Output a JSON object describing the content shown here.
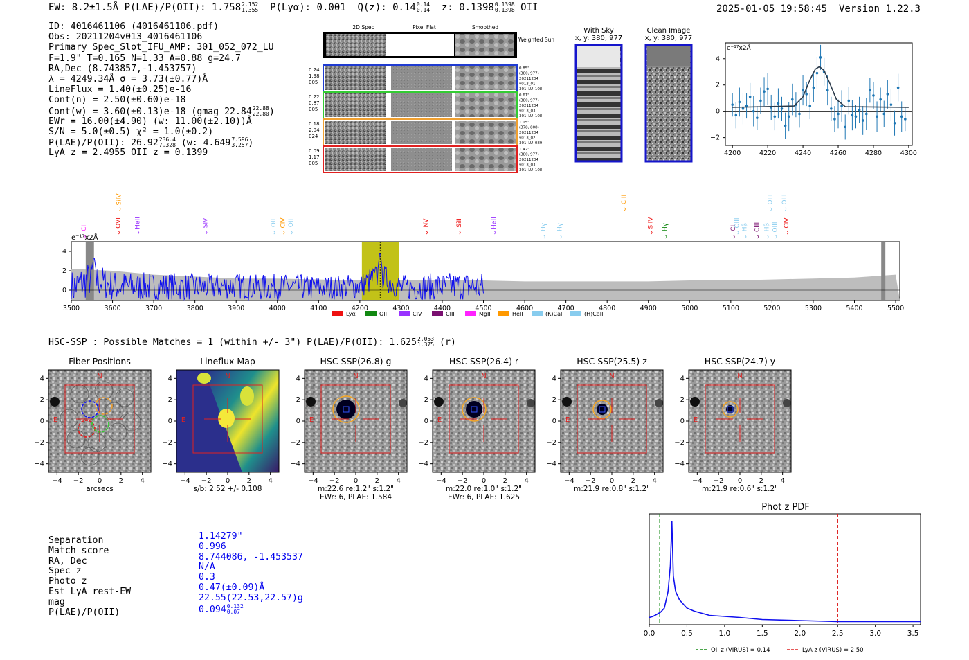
{
  "header": {
    "summary_left": "EW: 8.2±1.5Å  P(LAE)/P(OII): 1.758",
    "summary_frac_hi": "2.152",
    "summary_frac_lo": "1.355",
    "plya": "P(Lyα): 0.001",
    "qz": "Q(z): 0.14",
    "qz_hi": "0.14",
    "qz_lo": "0.14",
    "z": "z: 0.1398",
    "z_hi": "0.1398",
    "z_lo": "0.1398",
    "z_line": "OII",
    "timestamp": "2025-01-05 19:58:45",
    "version": "Version 1.22.3"
  },
  "info": {
    "id": "ID: 4016461106 (4016461106.pdf)",
    "obs": "Obs: 20211204v013_4016461106",
    "primary": "Primary Spec_Slot_IFU_AMP: 301_052_072_LU",
    "fiber": "F=1.9\"  T=0.165  N=1.33  A=0.88  g=24.7",
    "radec": "RA,Dec (8.743857,-1.453757)",
    "lambda": "λ = 4249.34Å  σ = 3.73(±0.77)Å",
    "lineflux": "LineFlux = 1.40(±0.25)e-16",
    "cont_n": "Cont(n) = 2.50(±0.60)e-18",
    "cont_w": "Cont(w) = 3.60(±0.13)e-18 (gmag 22.84",
    "cont_w_hi": "22.88",
    "cont_w_lo": "22.80",
    "ewr": "EWr = 16.00(±4.90) (w: 11.00(±2.10))Å",
    "sn": "S/N = 5.0(±0.5)  χ² = 1.0(±0.2)",
    "plae": "P(LAE)/P(OII): 26.92",
    "plae_hi": "236.4",
    "plae_lo": "7.328",
    "plae_w": "(w: 4.649",
    "plae_w_hi": "7.596",
    "plae_w_lo": "3.257",
    "redshifts": "LyA z = 2.4955  OII z = 0.1399"
  },
  "spec2d": {
    "headers": [
      "2D Spec",
      "Pixel Flat",
      "Smoothed"
    ],
    "weighted_label": "Weighted Sum",
    "rows": [
      {
        "left": [
          "0.24",
          "1.98",
          "005"
        ],
        "right": [
          "0.85\"",
          "(380, 977)",
          "20211204",
          "v013_01",
          "301_LU_108"
        ],
        "color": "#1f3bd1"
      },
      {
        "left": [
          "0.22",
          "0.87",
          "005"
        ],
        "right": [
          "0.61\"",
          "(380, 977)",
          "20211204",
          "v013_03",
          "301_LU_108"
        ],
        "color": "#33cc33"
      },
      {
        "left": [
          "0.18",
          "2.04",
          "024"
        ],
        "right": [
          "1.15\"",
          "(378, 808)",
          "20211204",
          "v013_02",
          "301_LU_089"
        ],
        "color": "#f0a030"
      },
      {
        "left": [
          "0.09",
          "1.17",
          "005"
        ],
        "right": [
          "1.42\"",
          "(380, 977)",
          "20211204",
          "v013_03",
          "301_LU_108"
        ],
        "color": "#e02020"
      }
    ]
  },
  "cutouts": {
    "with_sky": {
      "title": "With Sky",
      "coords": "x, y: 380, 977"
    },
    "clean": {
      "title": "Clean Image",
      "coords": "x, y: 380, 977"
    }
  },
  "line_fit": {
    "ylabel": "e⁻¹⁷x2Å",
    "xticks": [
      "4200",
      "4220",
      "4240",
      "4260",
      "4280",
      "4300"
    ],
    "yticks": [
      "4",
      "2",
      "0",
      "−2"
    ]
  },
  "full_spectrum": {
    "ylabel": "e⁻¹⁷x2Å",
    "xticks": [
      "3500",
      "3600",
      "3700",
      "3800",
      "3900",
      "4000",
      "4100",
      "4200",
      "4300",
      "4400",
      "4500",
      "4600",
      "4700",
      "4800",
      "4900",
      "5000",
      "5100",
      "5200",
      "5300",
      "5400",
      "5500"
    ],
    "yticks": [
      "4",
      "2",
      "0"
    ],
    "legend": [
      {
        "label": "Lyα",
        "color": "#ee1111"
      },
      {
        "label": "OII",
        "color": "#118811"
      },
      {
        "label": "CIV",
        "color": "#9933ff"
      },
      {
        "label": "CIII",
        "color": "#7a1070"
      },
      {
        "label": "MgII",
        "color": "#ff22ff"
      },
      {
        "label": "HeII",
        "color": "#ff9900"
      },
      {
        "label": "(K)CaII",
        "color": "#88ccee"
      },
      {
        "label": "(H)CaII",
        "color": "#88ccee"
      }
    ]
  },
  "hsc": {
    "title": "HSC-SSP : Possible Matches = 1 (within +/- 3\")  P(LAE)/P(OII): 1.625",
    "title_hi": "2.053",
    "title_lo": "1.375",
    "title_band": "(r)",
    "panels": [
      {
        "title": "Fiber Positions",
        "caption1": "arcsecs",
        "caption2": ""
      },
      {
        "title": "Lineflux Map",
        "caption1": "s/b: 2.52 +/- 0.108",
        "caption2": ""
      },
      {
        "title": "HSC SSP(26.8) g",
        "caption1": "m:22.6  re:1.2\"  s:1.2\"",
        "caption2": "EWr: 6, PLAE: 1.584"
      },
      {
        "title": "HSC SSP(26.4) r",
        "caption1": "m:22.0  re:1.0\"  s:1.2\"",
        "caption2": "EWr: 6, PLAE: 1.625"
      },
      {
        "title": "HSC SSP(25.5) z",
        "caption1": "m:21.9  re:0.8\"  s:1.2\"",
        "caption2": ""
      },
      {
        "title": "HSC SSP(24.7) y",
        "caption1": "m:21.9  re:0.6\"  s:1.2\"",
        "caption2": ""
      }
    ],
    "ticks": [
      "4",
      "2",
      "0",
      "−2",
      "−4"
    ],
    "compass_n": "N",
    "compass_e": "E"
  },
  "match": {
    "labels": [
      "Separation",
      "Match score",
      "RA, Dec",
      "Spec z",
      "Photo z",
      "Est LyA rest-EW",
      "mag",
      "P(LAE)/P(OII)"
    ],
    "values": [
      "1.14279\"",
      "0.996",
      "8.744086, -1.453537",
      "N/A",
      "0.3",
      "0.47(±0.09)Å",
      "22.55(22.53,22.57)g",
      "0.094"
    ],
    "plae_hi": "0.132",
    "plae_lo": "0.07"
  },
  "chart_data": [
    {
      "type": "scatter",
      "title": "",
      "xlabel": "",
      "ylabel": "e-17 x2Å",
      "xlim": [
        4196,
        4302
      ],
      "ylim": [
        -2.6,
        5.2
      ],
      "series": [
        {
          "name": "data",
          "x": [
            4200,
            4202,
            4204,
            4206,
            4208,
            4210,
            4212,
            4214,
            4216,
            4218,
            4220,
            4222,
            4224,
            4226,
            4228,
            4230,
            4232,
            4234,
            4236,
            4238,
            4240,
            4242,
            4244,
            4246,
            4248,
            4250,
            4252,
            4254,
            4256,
            4258,
            4260,
            4262,
            4264,
            4266,
            4268,
            4270,
            4272,
            4274,
            4276,
            4278,
            4280,
            4282,
            4284,
            4286,
            4288,
            4290,
            4292,
            4294,
            4296,
            4298
          ],
          "y": [
            0.5,
            -0.3,
            0.7,
            0.2,
            0.4,
            1.1,
            0.0,
            -0.5,
            0.8,
            1.5,
            1.7,
            0.3,
            -0.4,
            0.6,
            0.2,
            -1.1,
            -0.4,
            0.9,
            0.5,
            -0.2,
            1.6,
            1.3,
            0.4,
            1.8,
            2.9,
            4.1,
            3.0,
            1.6,
            0.2,
            -0.6,
            -0.2,
            0.4,
            -1.2,
            0.8,
            -0.3,
            -0.4,
            0.1,
            -0.7,
            -0.2,
            1.6,
            1.2,
            -0.4,
            0.9,
            -0.2,
            1.3,
            0.5,
            -0.9,
            1.8,
            -0.4,
            -0.6
          ]
        },
        {
          "name": "gaussian fit",
          "x": [
            4200,
            4235,
            4240,
            4244,
            4247,
            4249.34,
            4252,
            4255,
            4259,
            4264,
            4300
          ],
          "y": [
            0.3,
            0.4,
            1.1,
            2.4,
            3.2,
            3.4,
            3.1,
            2.2,
            0.9,
            0.35,
            0.3
          ]
        }
      ]
    },
    {
      "type": "line",
      "title": "",
      "xlabel": "",
      "ylabel": "e-17 x2Å",
      "xlim": [
        3500,
        5510
      ],
      "ylim": [
        -1.0,
        5.0
      ],
      "highlight_band": [
        4205,
        4295
      ],
      "line_marker": 4249.34,
      "series": [
        {
          "name": "flux",
          "x": [
            3500,
            3550,
            3600,
            3650,
            3700,
            3750,
            3800,
            3850,
            3900,
            3950,
            4000,
            4050,
            4100,
            4150,
            4200,
            4249,
            4300,
            4350,
            4400,
            4450,
            4500,
            4550,
            4600,
            4650,
            4700,
            4750,
            4800,
            4850,
            4900,
            4950,
            5000,
            5050,
            5100,
            5150,
            5200,
            5250,
            5300,
            5350,
            5400,
            5450,
            5500
          ],
          "y": [
            0.5,
            3.5,
            1.2,
            1.0,
            0.9,
            1.1,
            0.8,
            1.0,
            1.3,
            0.7,
            0.9,
            1.0,
            0.6,
            0.8,
            1.3,
            4.4,
            0.7,
            0.9,
            1.0,
            1.2,
            0.8,
            0.9,
            1.0,
            0.8,
            1.1,
            0.9,
            1.0,
            0.7,
            1.0,
            0.8,
            0.9,
            1.1,
            0.8,
            1.0,
            0.9,
            0.7,
            1.1,
            0.9,
            0.8,
            1.0,
            0.6
          ]
        },
        {
          "name": "error",
          "x": [
            3500,
            3600,
            3700,
            3800,
            3900,
            4000,
            4100,
            4200,
            4300,
            4400,
            4500,
            4600,
            4700,
            4800,
            4900,
            5000,
            5100,
            5200,
            5300,
            5400,
            5500
          ],
          "y": [
            2.2,
            2.0,
            1.6,
            1.4,
            1.2,
            1.2,
            1.1,
            1.0,
            1.0,
            1.0,
            1.0,
            0.9,
            0.9,
            0.9,
            0.9,
            1.0,
            1.0,
            1.1,
            1.2,
            1.3,
            1.6
          ]
        }
      ],
      "line_labels_top": [
        {
          "label": "SiIV",
          "x": 3620,
          "color": "#ff9900"
        },
        {
          "label": "CIII",
          "x": 4845,
          "color": "#ff9900"
        },
        {
          "label": "OIII",
          "x": 5200,
          "color": "#88ccee"
        },
        {
          "label": "OIII",
          "x": 5235,
          "color": "#88ccee"
        }
      ],
      "line_labels_mid": [
        {
          "label": "OVI",
          "x": 3618,
          "color": "#ee1111"
        },
        {
          "label": "HeII",
          "x": 3665,
          "color": "#9933ff"
        },
        {
          "label": "SIV",
          "x": 3830,
          "color": "#9933ff"
        },
        {
          "label": "OII",
          "x": 3995,
          "color": "#88ccee"
        },
        {
          "label": "CIV",
          "x": 4018,
          "color": "#ff9900"
        },
        {
          "label": "OII",
          "x": 4037,
          "color": "#88ccee"
        },
        {
          "label": "NV",
          "x": 4365,
          "color": "#ee1111"
        },
        {
          "label": "SiII",
          "x": 4445,
          "color": "#ee1111"
        },
        {
          "label": "HeII",
          "x": 4530,
          "color": "#9933ff"
        },
        {
          "label": "SiIV",
          "x": 4910,
          "color": "#ee1111"
        },
        {
          "label": "OIII",
          "x": 5120,
          "color": "#88ccee"
        },
        {
          "label": "CIV",
          "x": 5240,
          "color": "#ee1111"
        }
      ],
      "line_labels_low": [
        {
          "label": "CII",
          "x": 3535,
          "color": "#ff22ff"
        },
        {
          "label": "Hγ",
          "x": 4650,
          "color": "#88ccee"
        },
        {
          "label": "Hγ",
          "x": 4690,
          "color": "#88ccee"
        },
        {
          "label": "Hγ",
          "x": 4945,
          "color": "#118811"
        },
        {
          "label": "CII",
          "x": 5110,
          "color": "#7a1070"
        },
        {
          "label": "Hβ",
          "x": 5138,
          "color": "#88ccee"
        },
        {
          "label": "CIII",
          "x": 5168,
          "color": "#7a1070"
        },
        {
          "label": "Hβ",
          "x": 5192,
          "color": "#88ccee"
        },
        {
          "label": "OIII",
          "x": 5212,
          "color": "#88ccee"
        }
      ]
    },
    {
      "type": "line",
      "title": "Phot z PDF",
      "xlabel": "",
      "ylabel": "",
      "xlim": [
        0.0,
        3.6
      ],
      "ylim": [
        0,
        1.0
      ],
      "xticks": [
        "0.0",
        "0.5",
        "1.0",
        "1.5",
        "2.0",
        "2.5",
        "3.0",
        "3.5"
      ],
      "series": [
        {
          "name": "pdf",
          "x": [
            0.0,
            0.05,
            0.1,
            0.15,
            0.2,
            0.25,
            0.28,
            0.3,
            0.32,
            0.35,
            0.4,
            0.45,
            0.5,
            0.6,
            0.7,
            0.8,
            1.0,
            1.2,
            1.5,
            2.0,
            2.5,
            3.0,
            3.6
          ],
          "y": [
            0.05,
            0.06,
            0.08,
            0.1,
            0.14,
            0.3,
            0.55,
            0.98,
            0.45,
            0.3,
            0.22,
            0.18,
            0.14,
            0.11,
            0.09,
            0.07,
            0.06,
            0.05,
            0.03,
            0.02,
            0.01,
            0.01,
            0.01
          ]
        }
      ],
      "vlines": [
        {
          "name": "OII z (VIRUS) = 0.14",
          "x": 0.14,
          "color": "#118811"
        },
        {
          "name": "LyA z (VIRUS) = 2.50",
          "x": 2.5,
          "color": "#dd2222"
        }
      ]
    }
  ]
}
